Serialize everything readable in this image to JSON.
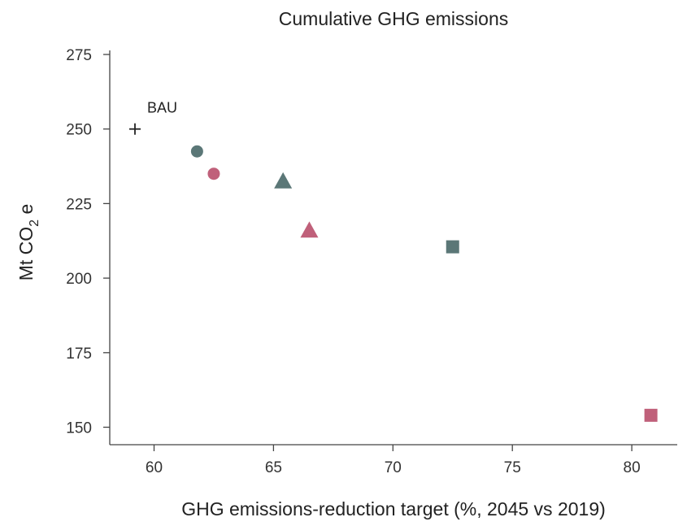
{
  "chart_data": {
    "type": "scatter",
    "title": "Cumulative GHG emissions",
    "xlabel": "GHG emissions-reduction target (%, 2045 vs 2019)",
    "ylabel": {
      "main": "Mt CO",
      "sub": "2",
      "suffix": " e"
    },
    "xlim": [
      58.2,
      81.8
    ],
    "ylim": [
      146,
      278
    ],
    "x_ticks": [
      60,
      65,
      70,
      75,
      80
    ],
    "y_ticks": [
      150,
      175,
      200,
      225,
      250,
      275
    ],
    "grid": false,
    "colors": {
      "slate": "#5b7777",
      "rose": "#c0607a",
      "bau": "#222222"
    },
    "points": [
      {
        "x": 59.2,
        "y": 250,
        "marker": "plus",
        "color": "#222222",
        "label": "BAU"
      },
      {
        "x": 61.8,
        "y": 242.5,
        "marker": "circle",
        "color": "#5b7777"
      },
      {
        "x": 62.5,
        "y": 235,
        "marker": "circle",
        "color": "#c0607a"
      },
      {
        "x": 65.4,
        "y": 232.5,
        "marker": "triangle",
        "color": "#5b7777"
      },
      {
        "x": 66.5,
        "y": 216,
        "marker": "triangle",
        "color": "#c0607a"
      },
      {
        "x": 72.5,
        "y": 210.5,
        "marker": "square",
        "color": "#5b7777"
      },
      {
        "x": 80.8,
        "y": 154,
        "marker": "square",
        "color": "#c0607a"
      }
    ]
  }
}
